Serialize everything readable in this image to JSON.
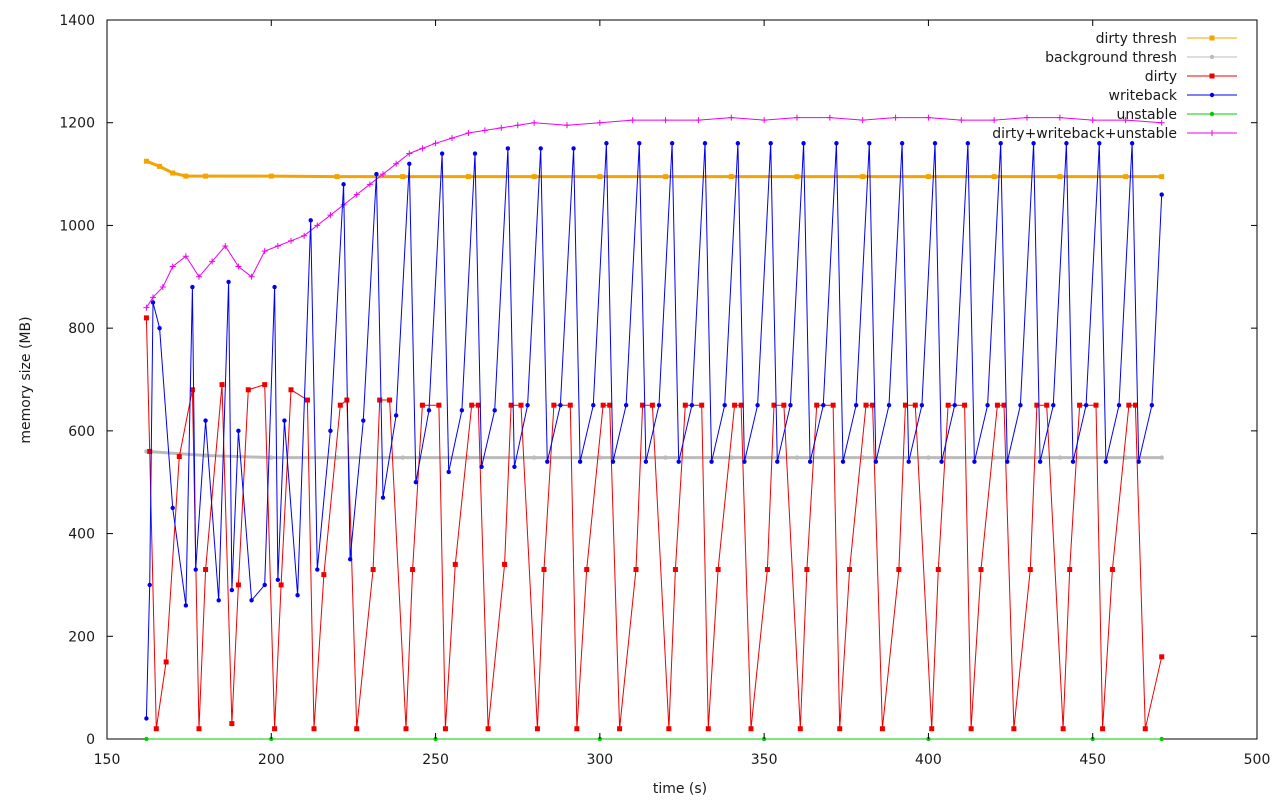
{
  "chart_data": {
    "type": "line",
    "title": "",
    "xlabel": "time (s)",
    "ylabel": "memory size (MB)",
    "xlim": [
      150,
      500
    ],
    "ylim": [
      0,
      1400
    ],
    "x_ticks": [
      150,
      200,
      250,
      300,
      350,
      400,
      450,
      500
    ],
    "y_ticks": [
      0,
      200,
      400,
      600,
      800,
      1000,
      1200,
      1400
    ],
    "grid": false,
    "legend_position": "top-right",
    "series": [
      {
        "name": "dirty thresh",
        "color": "#f5a300",
        "marker": "square",
        "x": [
          162,
          166,
          170,
          174,
          180,
          200,
          220,
          240,
          260,
          280,
          300,
          320,
          340,
          360,
          380,
          400,
          420,
          440,
          460,
          471
        ],
        "y": [
          1125,
          1115,
          1102,
          1096,
          1096,
          1096,
          1095,
          1095,
          1095,
          1095,
          1095,
          1095,
          1095,
          1095,
          1095,
          1095,
          1095,
          1095,
          1095,
          1095
        ]
      },
      {
        "name": "background thresh",
        "color": "#bbbbbb",
        "marker": "dot",
        "x": [
          162,
          180,
          200,
          220,
          240,
          260,
          280,
          300,
          320,
          340,
          360,
          380,
          400,
          420,
          440,
          460,
          471
        ],
        "y": [
          560,
          552,
          548,
          548,
          548,
          548,
          548,
          548,
          548,
          548,
          548,
          548,
          548,
          548,
          548,
          548,
          548
        ]
      },
      {
        "name": "dirty",
        "color": "#ee0000",
        "marker": "square",
        "x": [
          162,
          163,
          165,
          168,
          172,
          176,
          178,
          180,
          185,
          188,
          190,
          193,
          198,
          201,
          203,
          206,
          211,
          213,
          216,
          221,
          223,
          226,
          231,
          233,
          236,
          241,
          243,
          246,
          251,
          253,
          256,
          261,
          263,
          266,
          271,
          273,
          276,
          281,
          283,
          286,
          291,
          293,
          296,
          301,
          303,
          306,
          311,
          313,
          316,
          321,
          323,
          326,
          331,
          333,
          336,
          341,
          343,
          346,
          351,
          353,
          356,
          361,
          363,
          366,
          371,
          373,
          376,
          381,
          383,
          386,
          391,
          393,
          396,
          401,
          403,
          406,
          411,
          413,
          416,
          421,
          423,
          426,
          431,
          433,
          436,
          441,
          443,
          446,
          451,
          453,
          456,
          461,
          463,
          466,
          471
        ],
        "y": [
          820,
          560,
          20,
          150,
          550,
          680,
          20,
          330,
          690,
          30,
          300,
          680,
          690,
          20,
          300,
          680,
          660,
          20,
          320,
          650,
          660,
          20,
          330,
          660,
          660,
          20,
          330,
          650,
          650,
          20,
          340,
          650,
          650,
          20,
          340,
          650,
          650,
          20,
          330,
          650,
          650,
          20,
          330,
          650,
          650,
          20,
          330,
          650,
          650,
          20,
          330,
          650,
          650,
          20,
          330,
          650,
          650,
          20,
          330,
          650,
          650,
          20,
          330,
          650,
          650,
          20,
          330,
          650,
          650,
          20,
          330,
          650,
          650,
          20,
          330,
          650,
          650,
          20,
          330,
          650,
          650,
          20,
          330,
          650,
          650,
          20,
          330,
          650,
          650,
          20,
          330,
          650,
          650,
          20,
          160
        ]
      },
      {
        "name": "writeback",
        "color": "#0000ee",
        "marker": "dot",
        "x": [
          162,
          163,
          164,
          166,
          170,
          174,
          176,
          177,
          180,
          184,
          187,
          188,
          190,
          194,
          198,
          201,
          202,
          204,
          208,
          212,
          214,
          218,
          222,
          224,
          228,
          232,
          234,
          238,
          242,
          244,
          248,
          252,
          254,
          258,
          262,
          264,
          268,
          272,
          274,
          278,
          282,
          284,
          288,
          292,
          294,
          298,
          302,
          304,
          308,
          312,
          314,
          318,
          322,
          324,
          328,
          332,
          334,
          338,
          342,
          344,
          348,
          352,
          354,
          358,
          362,
          364,
          368,
          372,
          374,
          378,
          382,
          384,
          388,
          392,
          394,
          398,
          402,
          404,
          408,
          412,
          414,
          418,
          422,
          424,
          428,
          432,
          434,
          438,
          442,
          444,
          448,
          452,
          454,
          458,
          462,
          464,
          468,
          471
        ],
        "y": [
          40,
          300,
          850,
          800,
          450,
          260,
          880,
          330,
          620,
          270,
          890,
          290,
          600,
          270,
          300,
          880,
          310,
          620,
          280,
          1010,
          330,
          600,
          1080,
          350,
          620,
          1100,
          470,
          630,
          1120,
          500,
          640,
          1140,
          520,
          640,
          1140,
          530,
          640,
          1150,
          530,
          650,
          1150,
          540,
          650,
          1150,
          540,
          650,
          1160,
          540,
          650,
          1160,
          540,
          650,
          1160,
          540,
          650,
          1160,
          540,
          650,
          1160,
          540,
          650,
          1160,
          540,
          650,
          1160,
          540,
          650,
          1160,
          540,
          650,
          1160,
          540,
          650,
          1160,
          540,
          650,
          1160,
          540,
          650,
          1160,
          540,
          650,
          1160,
          540,
          650,
          1160,
          540,
          650,
          1160,
          540,
          650,
          1160,
          540,
          650,
          1160,
          540,
          650,
          1060
        ]
      },
      {
        "name": "unstable",
        "color": "#00cc00",
        "marker": "dot",
        "x": [
          162,
          200,
          250,
          300,
          350,
          400,
          450,
          471
        ],
        "y": [
          0,
          0,
          0,
          0,
          0,
          0,
          0,
          0
        ]
      },
      {
        "name": "dirty+writeback+unstable",
        "color": "#ee00ee",
        "marker": "plus",
        "x": [
          162,
          164,
          167,
          170,
          174,
          178,
          182,
          186,
          190,
          194,
          198,
          202,
          206,
          210,
          214,
          218,
          222,
          226,
          230,
          234,
          238,
          242,
          246,
          250,
          255,
          260,
          265,
          270,
          275,
          280,
          290,
          300,
          310,
          320,
          330,
          340,
          350,
          360,
          370,
          380,
          390,
          400,
          410,
          420,
          430,
          440,
          450,
          460,
          471
        ],
        "y": [
          840,
          860,
          880,
          920,
          940,
          900,
          930,
          960,
          920,
          900,
          950,
          960,
          970,
          980,
          1000,
          1020,
          1040,
          1060,
          1080,
          1100,
          1120,
          1140,
          1150,
          1160,
          1170,
          1180,
          1185,
          1190,
          1195,
          1200,
          1195,
          1200,
          1205,
          1205,
          1205,
          1210,
          1205,
          1210,
          1210,
          1205,
          1210,
          1210,
          1205,
          1205,
          1210,
          1210,
          1205,
          1205,
          1200
        ]
      }
    ]
  }
}
